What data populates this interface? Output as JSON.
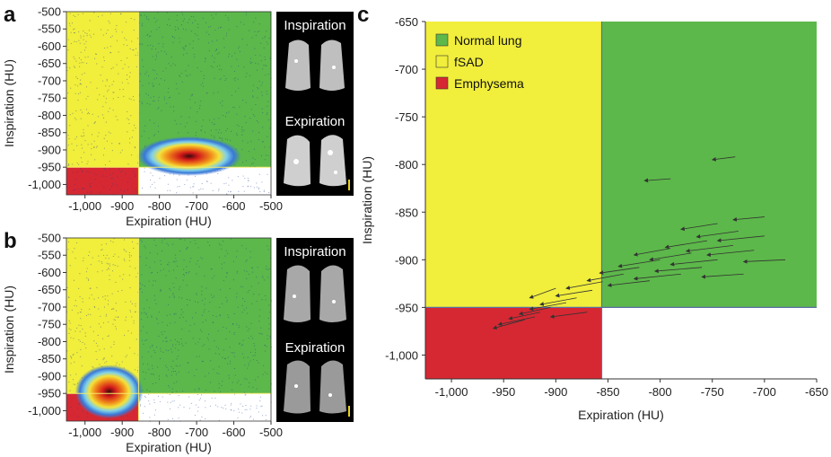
{
  "panel_labels": [
    "a",
    "b",
    "c"
  ],
  "colors": {
    "normal": "#5cb84a",
    "fsad": "#f1ee3c",
    "emphysema": "#d62833",
    "threshold_line": "#5a6fa6",
    "arrow": "#333333"
  },
  "ct_panels": [
    {
      "inspiration_label": "Inspiration",
      "expiration_label": "Expiration"
    },
    {
      "inspiration_label": "Inspiration",
      "expiration_label": "Expiration"
    }
  ],
  "chart_data": [
    {
      "panel": "a",
      "type": "heatmap",
      "xlabel": "Expiration (HU)",
      "ylabel": "Inspiration (HU)",
      "xlim": [
        -1050,
        -500
      ],
      "ylim": [
        -1030,
        -500
      ],
      "xticks": [
        "-1,000",
        "-900",
        "-800",
        "-700",
        "-600",
        "-500"
      ],
      "xtick_values": [
        -1000,
        -900,
        -800,
        -700,
        -600,
        -500
      ],
      "yticks": [
        "-500",
        "-550",
        "-600",
        "-650",
        "-700",
        "-750",
        "-800",
        "-850",
        "-900",
        "-950",
        "-1,000"
      ],
      "ytick_values": [
        -500,
        -550,
        -600,
        -650,
        -700,
        -750,
        -800,
        -850,
        -900,
        -950,
        -1000
      ],
      "thresholds": {
        "expiration": -856,
        "inspiration": -950
      },
      "density_center": {
        "expiration": -720,
        "inspiration": -918
      }
    },
    {
      "panel": "b",
      "type": "heatmap",
      "xlabel": "Expiration (HU)",
      "ylabel": "Inspiration (HU)",
      "xlim": [
        -1050,
        -500
      ],
      "ylim": [
        -1030,
        -500
      ],
      "xticks": [
        "-1,000",
        "-900",
        "-800",
        "-700",
        "-600",
        "-500"
      ],
      "xtick_values": [
        -1000,
        -900,
        -800,
        -700,
        -600,
        -500
      ],
      "yticks": [
        "-500",
        "-550",
        "-600",
        "-650",
        "-700",
        "-750",
        "-800",
        "-850",
        "-900",
        "-950",
        "-1,000"
      ],
      "ytick_values": [
        -500,
        -550,
        -600,
        -650,
        -700,
        -750,
        -800,
        -850,
        -900,
        -950,
        -1000
      ],
      "thresholds": {
        "expiration": -856,
        "inspiration": -950
      },
      "density_center": {
        "expiration": -935,
        "inspiration": -945
      }
    },
    {
      "panel": "c",
      "type": "scatter",
      "xlabel": "Expiration (HU)",
      "ylabel": "Inspiration (HU)",
      "xlim": [
        -1025,
        -650
      ],
      "ylim": [
        -1025,
        -650
      ],
      "xticks": [
        "-1,000",
        "-950",
        "-900",
        "-850",
        "-800",
        "-750",
        "-700",
        "-650"
      ],
      "xtick_values": [
        -1000,
        -950,
        -900,
        -850,
        -800,
        -750,
        -700,
        -650
      ],
      "yticks": [
        "-650",
        "-700",
        "-750",
        "-800",
        "-850",
        "-900",
        "-950",
        "-1,000"
      ],
      "ytick_values": [
        -650,
        -700,
        -750,
        -800,
        -850,
        -900,
        -950,
        -1000
      ],
      "thresholds": {
        "expiration": -856,
        "inspiration": -950
      },
      "legend": [
        "Normal lung",
        "fSAD",
        "Emphysema"
      ],
      "legend_position": "top-left",
      "arrows": [
        {
          "x0": -728,
          "y0": -792,
          "x1": -750,
          "y1": -795
        },
        {
          "x0": -790,
          "y0": -815,
          "x1": -815,
          "y1": -817
        },
        {
          "x0": -700,
          "y0": -855,
          "x1": -730,
          "y1": -858
        },
        {
          "x0": -745,
          "y0": -862,
          "x1": -780,
          "y1": -868
        },
        {
          "x0": -725,
          "y0": -870,
          "x1": -765,
          "y1": -876
        },
        {
          "x0": -700,
          "y0": -875,
          "x1": -745,
          "y1": -880
        },
        {
          "x0": -755,
          "y0": -880,
          "x1": -795,
          "y1": -887
        },
        {
          "x0": -730,
          "y0": -885,
          "x1": -775,
          "y1": -891
        },
        {
          "x0": -790,
          "y0": -888,
          "x1": -825,
          "y1": -895
        },
        {
          "x0": -710,
          "y0": -890,
          "x1": -755,
          "y1": -895
        },
        {
          "x0": -770,
          "y0": -893,
          "x1": -810,
          "y1": -900
        },
        {
          "x0": -680,
          "y0": -900,
          "x1": -720,
          "y1": -902
        },
        {
          "x0": -745,
          "y0": -900,
          "x1": -790,
          "y1": -905
        },
        {
          "x0": -800,
          "y0": -900,
          "x1": -840,
          "y1": -907
        },
        {
          "x0": -760,
          "y0": -908,
          "x1": -805,
          "y1": -912
        },
        {
          "x0": -820,
          "y0": -908,
          "x1": -858,
          "y1": -914
        },
        {
          "x0": -780,
          "y0": -915,
          "x1": -825,
          "y1": -920
        },
        {
          "x0": -835,
          "y0": -915,
          "x1": -870,
          "y1": -922
        },
        {
          "x0": -720,
          "y0": -915,
          "x1": -760,
          "y1": -918
        },
        {
          "x0": -810,
          "y0": -922,
          "x1": -850,
          "y1": -927
        },
        {
          "x0": -855,
          "y0": -923,
          "x1": -890,
          "y1": -930
        },
        {
          "x0": -865,
          "y0": -932,
          "x1": -900,
          "y1": -938
        },
        {
          "x0": -880,
          "y0": -940,
          "x1": -915,
          "y1": -947
        },
        {
          "x0": -890,
          "y0": -945,
          "x1": -925,
          "y1": -952
        },
        {
          "x0": -905,
          "y0": -950,
          "x1": -935,
          "y1": -957
        },
        {
          "x0": -915,
          "y0": -955,
          "x1": -945,
          "y1": -962
        },
        {
          "x0": -920,
          "y0": -960,
          "x1": -955,
          "y1": -968
        },
        {
          "x0": -930,
          "y0": -963,
          "x1": -960,
          "y1": -972
        },
        {
          "x0": -870,
          "y0": -955,
          "x1": -905,
          "y1": -960
        },
        {
          "x0": -900,
          "y0": -930,
          "x1": -925,
          "y1": -940
        }
      ]
    }
  ]
}
